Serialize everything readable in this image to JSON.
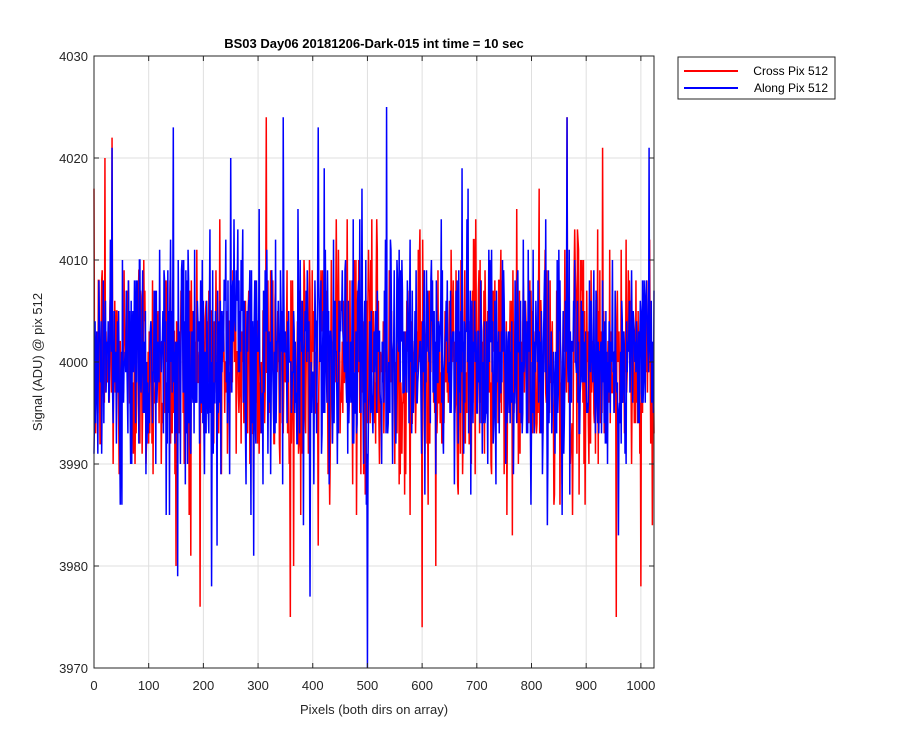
{
  "chart_data": {
    "type": "line",
    "title": "BS03 Day06 20181206-Dark-015 int time = 10 sec",
    "xlabel": "Pixels (both dirs on array)",
    "ylabel": "Signal (ADU) @ pix 512",
    "xlim": [
      0,
      1024
    ],
    "ylim": [
      3970,
      4030
    ],
    "xticks": [
      0,
      100,
      200,
      300,
      400,
      500,
      600,
      700,
      800,
      900,
      1000
    ],
    "yticks": [
      3970,
      3980,
      3990,
      4000,
      4010,
      4020,
      4030
    ],
    "grid": true,
    "legend_position": "outside-top-right",
    "series": [
      {
        "name": "Cross Pix 512",
        "color": "#ff0000",
        "mean": 4000,
        "noise_std": 6,
        "notable_points": [
          [
            20,
            4020
          ],
          [
            33,
            4022
          ],
          [
            150,
            3980
          ],
          [
            177,
            3981
          ],
          [
            315,
            4024
          ],
          [
            365,
            3980
          ],
          [
            410,
            3982
          ],
          [
            600,
            3974
          ],
          [
            625,
            3980
          ],
          [
            755,
            3985
          ],
          [
            865,
            4024
          ],
          [
            930,
            4021
          ],
          [
            955,
            3975
          ],
          [
            1000,
            3978
          ]
        ]
      },
      {
        "name": "Along Pix 512",
        "color": "#0000ff",
        "mean": 4000,
        "noise_std": 6,
        "notable_points": [
          [
            145,
            4023
          ],
          [
            153,
            3979
          ],
          [
            215,
            3978
          ],
          [
            250,
            4020
          ],
          [
            395,
            3977
          ],
          [
            410,
            4023
          ],
          [
            490,
            4017
          ],
          [
            500,
            3970
          ],
          [
            535,
            4025
          ],
          [
            865,
            4024
          ],
          [
            1015,
            4021
          ]
        ]
      }
    ]
  },
  "colors": {
    "grid": "#dfdfdf",
    "axes": "#262626",
    "background": "#ffffff"
  }
}
